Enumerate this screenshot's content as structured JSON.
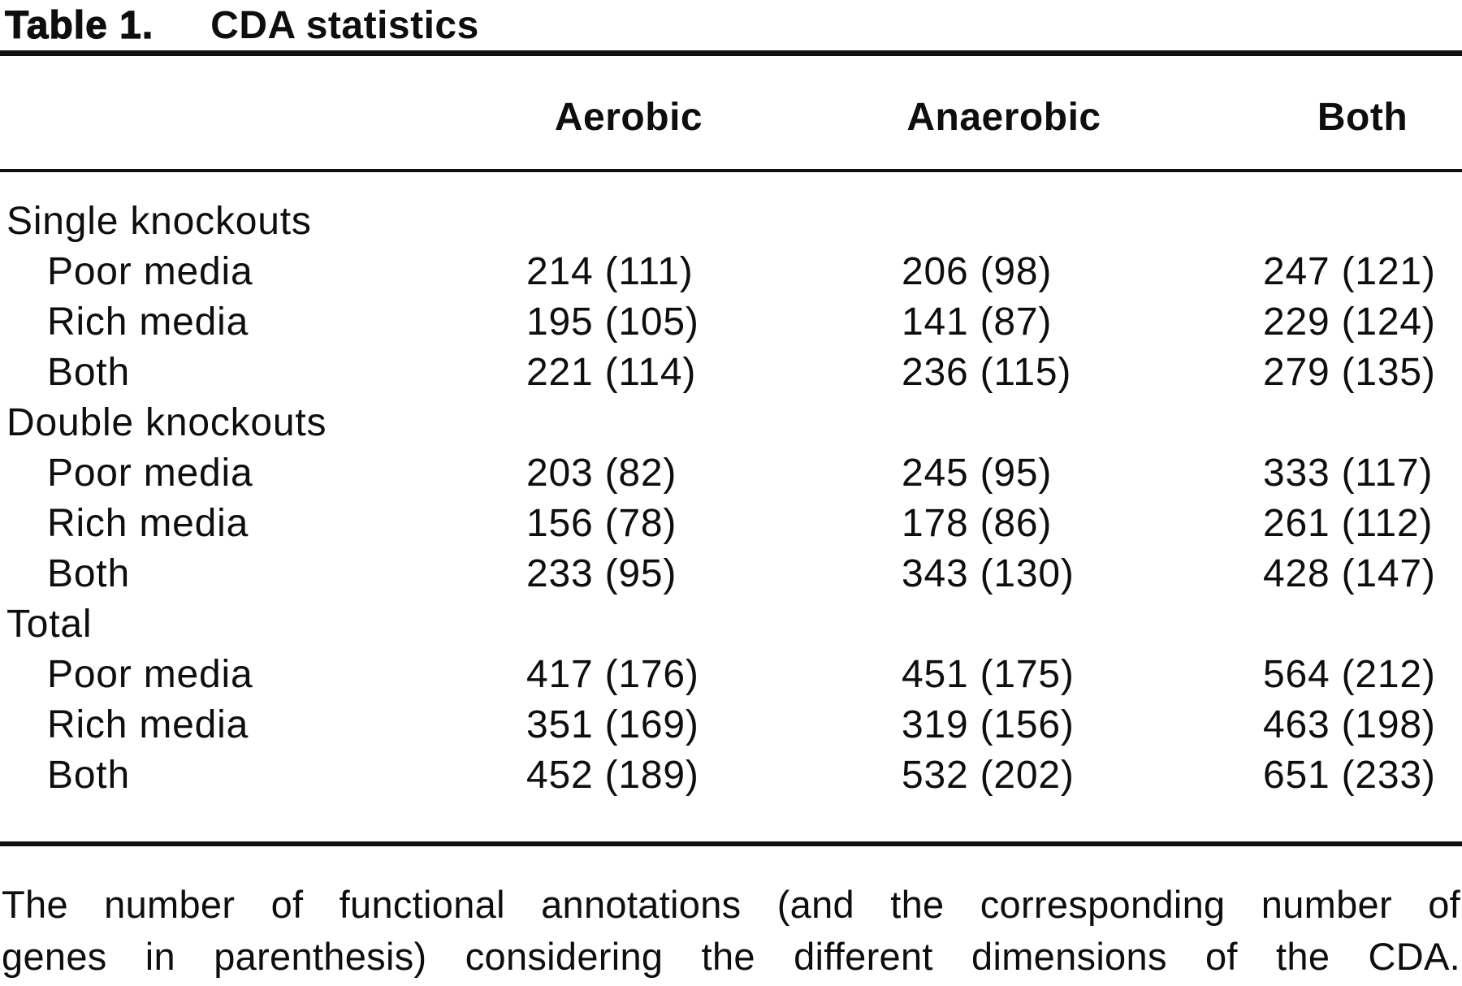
{
  "title": {
    "label": "Table 1.",
    "caption": "CDA statistics"
  },
  "table": {
    "columns": [
      "",
      "Aerobic",
      "Anaerobic",
      "Both"
    ],
    "rows": [
      {
        "label": "Single knockouts",
        "indent": false,
        "cells": [
          "",
          "",
          ""
        ]
      },
      {
        "label": "Poor media",
        "indent": true,
        "cells": [
          "214 (111)",
          "206 (98)",
          "247 (121)"
        ]
      },
      {
        "label": "Rich media",
        "indent": true,
        "cells": [
          "195 (105)",
          "141 (87)",
          "229 (124)"
        ]
      },
      {
        "label": "Both",
        "indent": true,
        "cells": [
          "221 (114)",
          "236 (115)",
          "279 (135)"
        ]
      },
      {
        "label": "Double knockouts",
        "indent": false,
        "cells": [
          "",
          "",
          ""
        ]
      },
      {
        "label": "Poor media",
        "indent": true,
        "cells": [
          "203 (82)",
          "245 (95)",
          "333 (117)"
        ]
      },
      {
        "label": "Rich media",
        "indent": true,
        "cells": [
          "156 (78)",
          "178 (86)",
          "261 (112)"
        ]
      },
      {
        "label": "Both",
        "indent": true,
        "cells": [
          "233 (95)",
          "343 (130)",
          "428 (147)"
        ]
      },
      {
        "label": "Total",
        "indent": false,
        "cells": [
          "",
          "",
          ""
        ]
      },
      {
        "label": "Poor media",
        "indent": true,
        "cells": [
          "417 (176)",
          "451 (175)",
          "564 (212)"
        ]
      },
      {
        "label": "Rich media",
        "indent": true,
        "cells": [
          "351 (169)",
          "319 (156)",
          "463 (198)"
        ]
      },
      {
        "label": "Both",
        "indent": true,
        "cells": [
          "452 (189)",
          "532 (202)",
          "651 (233)"
        ]
      }
    ]
  },
  "footnote": {
    "lines": [
      "The number of functional annotations (and the corresponding number of",
      "genes in parenthesis) considering the different dimensions of the CDA."
    ],
    "full_text": "The number of functional annotations (and the corresponding number of genes in parenthesis) considering the different dimensions of the CDA."
  },
  "colors": {
    "text": "#0e0e0e",
    "rule": "#101010",
    "background": "#ffffff"
  }
}
